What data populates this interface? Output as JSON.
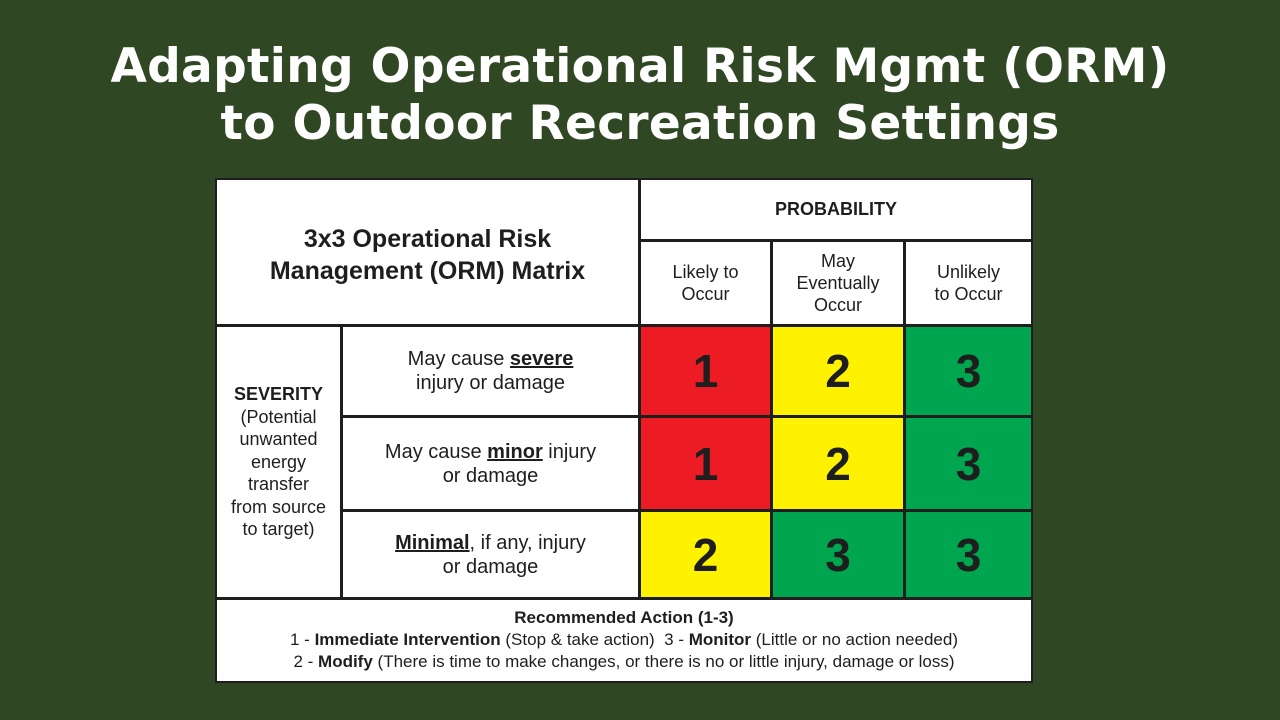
{
  "slide": {
    "title_line1": "Adapting Operational Risk Mgmt (ORM)",
    "title_line2": "to Outdoor Recreation Settings",
    "background_color": "#2f4723"
  },
  "matrix": {
    "title_line1": "3x3 Operational Risk",
    "title_line2": "Management (ORM) Matrix",
    "probability_header": "PROBABILITY",
    "probability_columns": [
      {
        "line1": "Likely to",
        "line2": "Occur",
        "line3": ""
      },
      {
        "line1": "May",
        "line2": "Eventually",
        "line3": "Occur"
      },
      {
        "line1": "Unlikely",
        "line2": "to Occur",
        "line3": ""
      }
    ],
    "severity_header": "SEVERITY",
    "severity_lines": [
      "(Potential",
      "unwanted",
      "energy",
      "transfer",
      "from source",
      "to target)"
    ],
    "rows": [
      {
        "desc_pre": "May cause ",
        "desc_emph": "severe",
        "desc_post": "",
        "desc_line2": "injury or damage",
        "values": [
          "1",
          "2",
          "3"
        ]
      },
      {
        "desc_pre": "May cause ",
        "desc_emph": "minor",
        "desc_post": " injury",
        "desc_line2": "or damage",
        "values": [
          "1",
          "2",
          "3"
        ]
      },
      {
        "desc_pre": "",
        "desc_emph": "Minimal",
        "desc_post": ", if any, injury",
        "desc_line2": "or damage",
        "values": [
          "2",
          "3",
          "3"
        ]
      }
    ],
    "risk_colors": {
      "1": "#ed1c24",
      "2": "#fff200",
      "3": "#00a64f"
    }
  },
  "legend": {
    "title": "Recommended Action (1-3)",
    "item1_num": "1 - ",
    "item1_label": "Immediate Intervention",
    "item1_desc": " (Stop & take action)  ",
    "item3_num": "3 - ",
    "item3_label": "Monitor",
    "item3_desc": " (Little or no action needed)",
    "item2_num": "2 - ",
    "item2_label": "Modify",
    "item2_desc": " (There is time to make changes, or there is no or little injury, damage or loss)"
  }
}
